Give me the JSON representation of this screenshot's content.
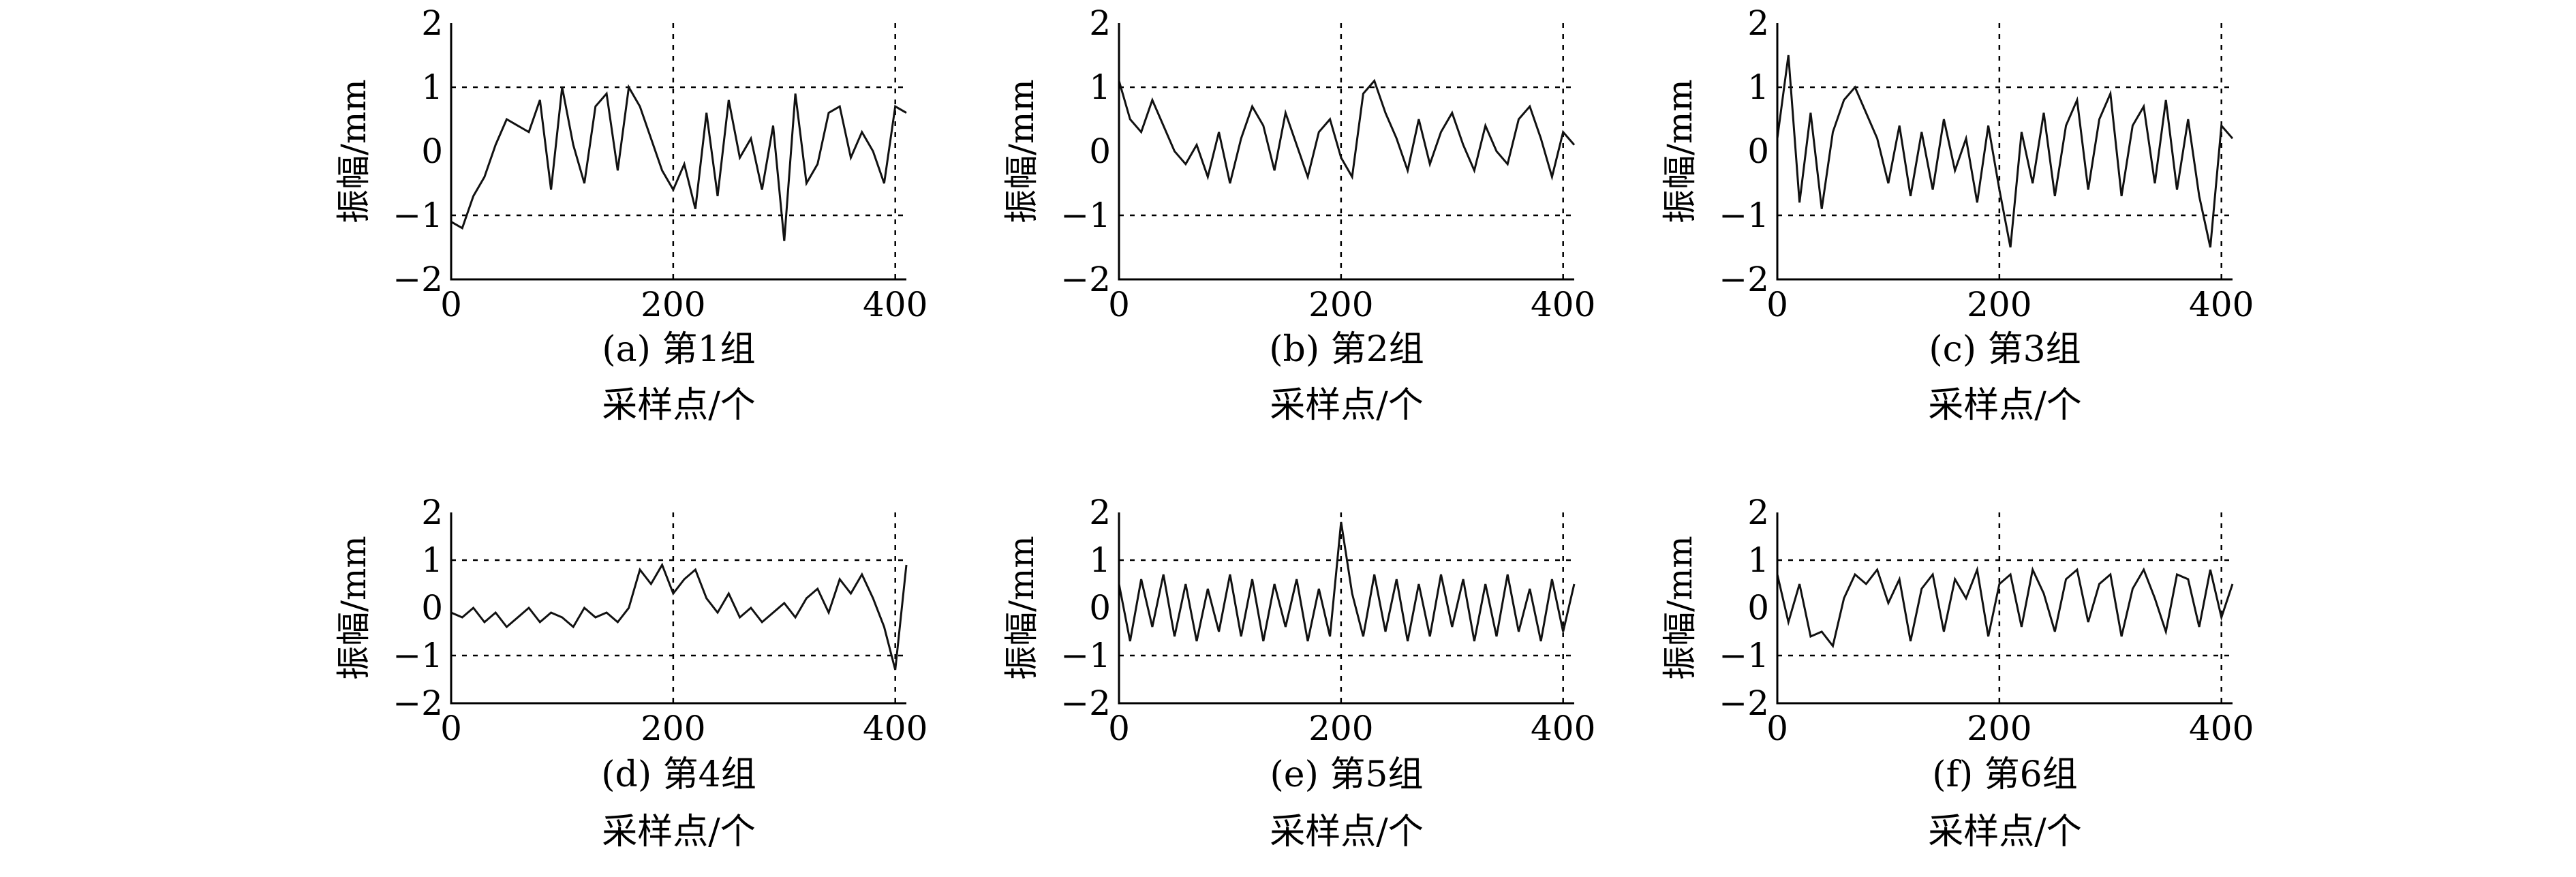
{
  "chart_data": [
    {
      "type": "line",
      "caption": "(a) 第1组",
      "xlabel": "采样点/个",
      "ylabel": "振幅/mm",
      "xlim": [
        0,
        410
      ],
      "ylim": [
        -2,
        2
      ],
      "xticks": [
        "0",
        "200",
        "400"
      ],
      "yticks": [
        "2",
        "1",
        "0",
        "−1",
        "−2"
      ],
      "grid": "dashed",
      "series": [
        {
          "x": [
            0,
            10,
            20,
            30,
            40,
            50,
            60,
            70,
            80,
            90,
            100,
            110,
            120,
            130,
            140,
            150,
            160,
            170,
            180,
            190,
            200,
            210,
            220,
            230,
            240,
            250,
            260,
            270,
            280,
            290,
            300,
            310,
            320,
            330,
            340,
            350,
            360,
            370,
            380,
            390,
            400,
            410
          ],
          "y": [
            -1.1,
            -1.2,
            -0.7,
            -0.4,
            0.1,
            0.5,
            0.4,
            0.3,
            0.8,
            -0.6,
            1.0,
            0.1,
            -0.5,
            0.7,
            0.9,
            -0.3,
            1.0,
            0.7,
            0.2,
            -0.3,
            -0.6,
            -0.2,
            -0.9,
            0.6,
            -0.7,
            0.8,
            -0.1,
            0.2,
            -0.6,
            0.4,
            -1.4,
            0.9,
            -0.5,
            -0.2,
            0.6,
            0.7,
            -0.1,
            0.3,
            0.0,
            -0.5,
            0.7,
            0.6
          ]
        }
      ]
    },
    {
      "type": "line",
      "caption": "(b) 第2组",
      "xlabel": "采样点/个",
      "ylabel": "振幅/mm",
      "xlim": [
        0,
        410
      ],
      "ylim": [
        -2,
        2
      ],
      "xticks": [
        "0",
        "200",
        "400"
      ],
      "yticks": [
        "2",
        "1",
        "0",
        "−1",
        "−2"
      ],
      "grid": "dashed",
      "series": [
        {
          "x": [
            0,
            10,
            20,
            30,
            40,
            50,
            60,
            70,
            80,
            90,
            100,
            110,
            120,
            130,
            140,
            150,
            160,
            170,
            180,
            190,
            200,
            210,
            220,
            230,
            240,
            250,
            260,
            270,
            280,
            290,
            300,
            310,
            320,
            330,
            340,
            350,
            360,
            370,
            380,
            390,
            400,
            410
          ],
          "y": [
            1.1,
            0.5,
            0.3,
            0.8,
            0.4,
            0.0,
            -0.2,
            0.1,
            -0.4,
            0.3,
            -0.5,
            0.2,
            0.7,
            0.4,
            -0.3,
            0.6,
            0.1,
            -0.4,
            0.3,
            0.5,
            -0.1,
            -0.4,
            0.9,
            1.1,
            0.6,
            0.2,
            -0.3,
            0.5,
            -0.2,
            0.3,
            0.6,
            0.1,
            -0.3,
            0.4,
            0.0,
            -0.2,
            0.5,
            0.7,
            0.2,
            -0.4,
            0.3,
            0.1
          ]
        }
      ]
    },
    {
      "type": "line",
      "caption": "(c) 第3组",
      "xlabel": "采样点/个",
      "ylabel": "振幅/mm",
      "xlim": [
        0,
        410
      ],
      "ylim": [
        -2,
        2
      ],
      "xticks": [
        "0",
        "200",
        "400"
      ],
      "yticks": [
        "2",
        "1",
        "0",
        "−1",
        "−2"
      ],
      "grid": "dashed",
      "series": [
        {
          "x": [
            0,
            10,
            20,
            30,
            40,
            50,
            60,
            70,
            80,
            90,
            100,
            110,
            120,
            130,
            140,
            150,
            160,
            170,
            180,
            190,
            200,
            210,
            220,
            230,
            240,
            250,
            260,
            270,
            280,
            290,
            300,
            310,
            320,
            330,
            340,
            350,
            360,
            370,
            380,
            390,
            400,
            410
          ],
          "y": [
            0.2,
            1.5,
            -0.8,
            0.6,
            -0.9,
            0.3,
            0.8,
            1.0,
            0.6,
            0.2,
            -0.5,
            0.4,
            -0.7,
            0.3,
            -0.6,
            0.5,
            -0.3,
            0.2,
            -0.8,
            0.4,
            -0.6,
            -1.5,
            0.3,
            -0.5,
            0.6,
            -0.7,
            0.4,
            0.8,
            -0.6,
            0.5,
            0.9,
            -0.7,
            0.4,
            0.7,
            -0.5,
            0.8,
            -0.6,
            0.5,
            -0.7,
            -1.5,
            0.4,
            0.2
          ]
        }
      ]
    },
    {
      "type": "line",
      "caption": "(d) 第4组",
      "xlabel": "采样点/个",
      "ylabel": "振幅/mm",
      "xlim": [
        0,
        410
      ],
      "ylim": [
        -2,
        2
      ],
      "xticks": [
        "0",
        "200",
        "400"
      ],
      "yticks": [
        "2",
        "1",
        "0",
        "−1",
        "−2"
      ],
      "grid": "dashed",
      "series": [
        {
          "x": [
            0,
            10,
            20,
            30,
            40,
            50,
            60,
            70,
            80,
            90,
            100,
            110,
            120,
            130,
            140,
            150,
            160,
            170,
            180,
            190,
            200,
            210,
            220,
            230,
            240,
            250,
            260,
            270,
            280,
            290,
            300,
            310,
            320,
            330,
            340,
            350,
            360,
            370,
            380,
            390,
            400,
            410
          ],
          "y": [
            -0.1,
            -0.2,
            0.0,
            -0.3,
            -0.1,
            -0.4,
            -0.2,
            0.0,
            -0.3,
            -0.1,
            -0.2,
            -0.4,
            0.0,
            -0.2,
            -0.1,
            -0.3,
            0.0,
            0.8,
            0.5,
            0.9,
            0.3,
            0.6,
            0.8,
            0.2,
            -0.1,
            0.3,
            -0.2,
            0.0,
            -0.3,
            -0.1,
            0.1,
            -0.2,
            0.2,
            0.4,
            -0.1,
            0.6,
            0.3,
            0.7,
            0.2,
            -0.4,
            -1.3,
            0.9
          ]
        }
      ]
    },
    {
      "type": "line",
      "caption": "(e) 第5组",
      "xlabel": "采样点/个",
      "ylabel": "振幅/mm",
      "xlim": [
        0,
        410
      ],
      "ylim": [
        -2,
        2
      ],
      "xticks": [
        "0",
        "200",
        "400"
      ],
      "yticks": [
        "2",
        "1",
        "0",
        "−1",
        "−2"
      ],
      "grid": "dashed",
      "series": [
        {
          "x": [
            0,
            10,
            20,
            30,
            40,
            50,
            60,
            70,
            80,
            90,
            100,
            110,
            120,
            130,
            140,
            150,
            160,
            170,
            180,
            190,
            200,
            210,
            220,
            230,
            240,
            250,
            260,
            270,
            280,
            290,
            300,
            310,
            320,
            330,
            340,
            350,
            360,
            370,
            380,
            390,
            400,
            410
          ],
          "y": [
            0.5,
            -0.7,
            0.6,
            -0.4,
            0.7,
            -0.6,
            0.5,
            -0.7,
            0.4,
            -0.5,
            0.7,
            -0.6,
            0.6,
            -0.7,
            0.5,
            -0.4,
            0.6,
            -0.7,
            0.4,
            -0.6,
            1.8,
            0.3,
            -0.6,
            0.7,
            -0.5,
            0.6,
            -0.7,
            0.5,
            -0.6,
            0.7,
            -0.4,
            0.6,
            -0.7,
            0.5,
            -0.6,
            0.7,
            -0.5,
            0.4,
            -0.7,
            0.6,
            -0.5,
            0.5
          ]
        }
      ]
    },
    {
      "type": "line",
      "caption": "(f) 第6组",
      "xlabel": "采样点/个",
      "ylabel": "振幅/mm",
      "xlim": [
        0,
        410
      ],
      "ylim": [
        -2,
        2
      ],
      "xticks": [
        "0",
        "200",
        "400"
      ],
      "yticks": [
        "2",
        "1",
        "0",
        "−1",
        "−2"
      ],
      "grid": "dashed",
      "series": [
        {
          "x": [
            0,
            10,
            20,
            30,
            40,
            50,
            60,
            70,
            80,
            90,
            100,
            110,
            120,
            130,
            140,
            150,
            160,
            170,
            180,
            190,
            200,
            210,
            220,
            230,
            240,
            250,
            260,
            270,
            280,
            290,
            300,
            310,
            320,
            330,
            340,
            350,
            360,
            370,
            380,
            390,
            400,
            410
          ],
          "y": [
            0.7,
            -0.3,
            0.5,
            -0.6,
            -0.5,
            -0.8,
            0.2,
            0.7,
            0.5,
            0.8,
            0.1,
            0.6,
            -0.7,
            0.4,
            0.7,
            -0.5,
            0.6,
            0.2,
            0.8,
            -0.6,
            0.5,
            0.7,
            -0.4,
            0.8,
            0.3,
            -0.5,
            0.6,
            0.8,
            -0.3,
            0.5,
            0.7,
            -0.6,
            0.4,
            0.8,
            0.2,
            -0.5,
            0.7,
            0.6,
            -0.4,
            0.8,
            -0.2,
            0.5
          ]
        }
      ]
    }
  ]
}
